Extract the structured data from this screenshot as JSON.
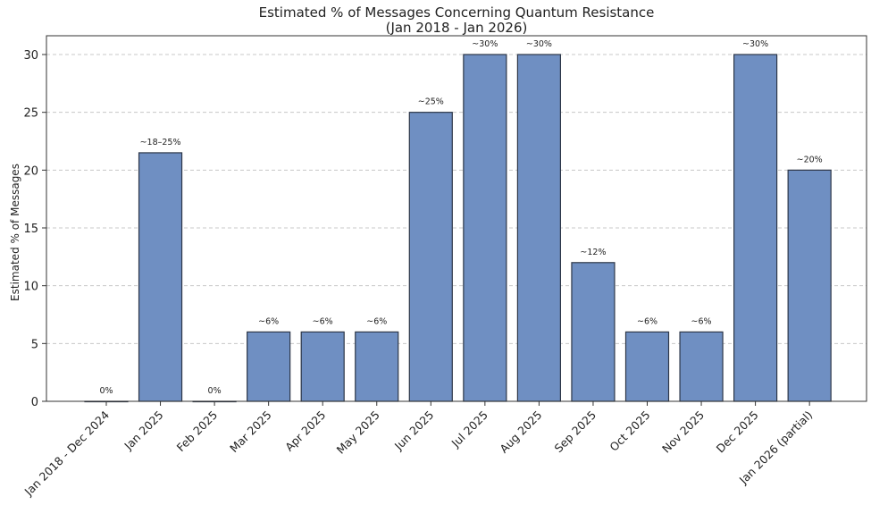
{
  "chart_data": {
    "type": "bar",
    "title": "Estimated % of Messages Concerning Quantum Resistance",
    "subtitle": "(Jan 2018 - Jan 2026)",
    "xlabel": "",
    "ylabel": "Estimated % of Messages",
    "ylim": [
      0,
      31.5
    ],
    "yticks": [
      0,
      5,
      10,
      15,
      20,
      25,
      30
    ],
    "grid": "y-dashed",
    "bar_color": "#6f8fc2",
    "edge_color": "#2d3748",
    "categories": [
      "Jan 2018 - Dec 2024",
      "Jan 2025",
      "Feb 2025",
      "Mar 2025",
      "Apr 2025",
      "May 2025",
      "Jun 2025",
      "Jul 2025",
      "Aug 2025",
      "Sep 2025",
      "Oct 2025",
      "Nov 2025",
      "Dec 2025",
      "Jan 2026 (partial)"
    ],
    "values": [
      0,
      21.5,
      0,
      6,
      6,
      6,
      25,
      30,
      30,
      12,
      6,
      6,
      30,
      20
    ],
    "data_labels": [
      "0%",
      "~18–25%",
      "0%",
      "~6%",
      "~6%",
      "~6%",
      "~25%",
      "~30%",
      "~30%",
      "~12%",
      "~6%",
      "~6%",
      "~30%",
      "~20%"
    ]
  }
}
